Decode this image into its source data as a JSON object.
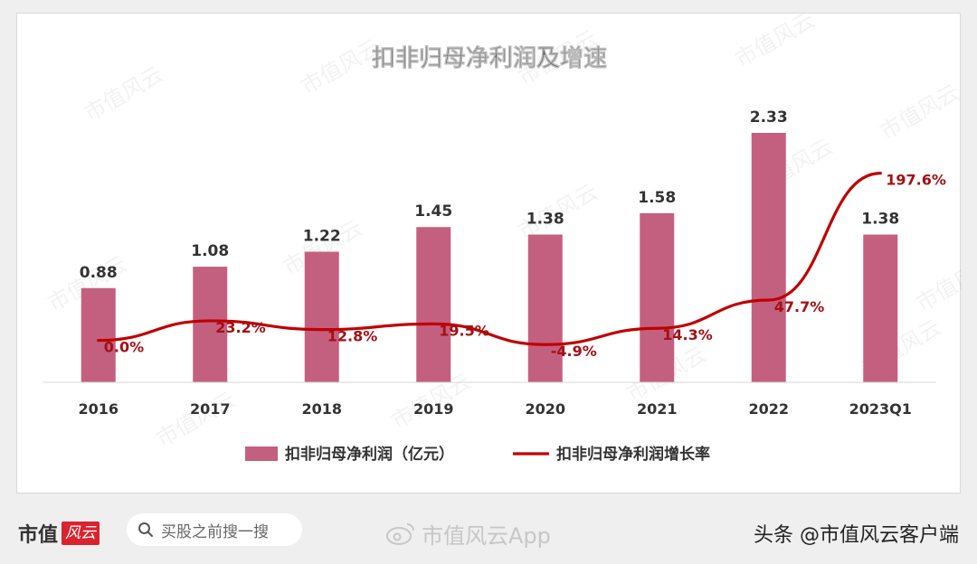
{
  "chart_data": {
    "type": "bar",
    "title": "扣非归母净利润及增速",
    "categories": [
      "2016",
      "2017",
      "2018",
      "2019",
      "2020",
      "2021",
      "2022",
      "2023Q1"
    ],
    "series": [
      {
        "name": "扣非归母净利润（亿元）",
        "type": "bar",
        "values": [
          0.88,
          1.08,
          1.22,
          1.45,
          1.38,
          1.58,
          2.33,
          1.38
        ],
        "labels": [
          "0.88",
          "1.08",
          "1.22",
          "1.45",
          "1.38",
          "1.58",
          "2.33",
          "1.38"
        ]
      },
      {
        "name": "扣非归母净利润增长率",
        "type": "line",
        "values": [
          0.0,
          23.2,
          12.8,
          19.5,
          -4.9,
          14.3,
          47.7,
          197.6
        ],
        "labels": [
          "0.0%",
          "23.2%",
          "12.8%",
          "19.5%",
          "-4.9%",
          "14.3%",
          "47.7%",
          "197.6%"
        ]
      }
    ],
    "ylim_bar": [
      0,
      2.6
    ],
    "ylim_line": [
      -10,
      210
    ],
    "legend_position": "bottom",
    "grid": false
  },
  "colors": {
    "bar": "#c4607f",
    "line": "#c00000",
    "line_label": "#a50f15",
    "text": "#333333"
  },
  "watermark": "市值风云",
  "footer": {
    "logo_text": "市值",
    "logo_mark": "风云",
    "search_placeholder": "买股之前搜一搜",
    "weibo_text": "市值风云App",
    "source_text": "头条 @市值风云客户端"
  }
}
